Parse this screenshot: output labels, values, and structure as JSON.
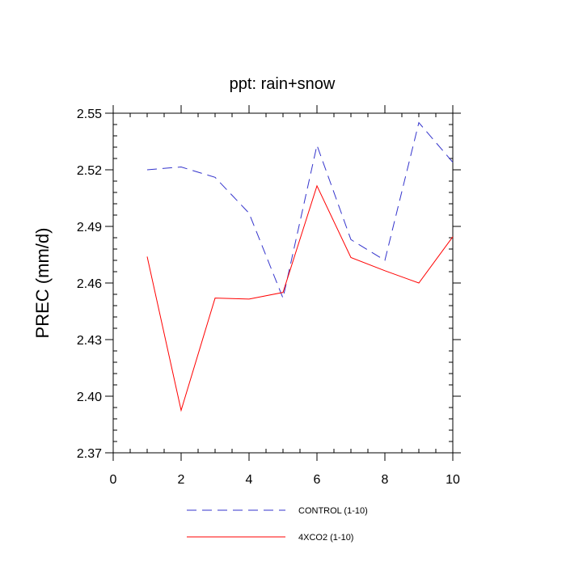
{
  "chart_data": {
    "type": "line",
    "title": "ppt: rain+snow",
    "xlabel": "",
    "ylabel": "PREC  (mm/d)",
    "xlim": [
      0,
      10
    ],
    "ylim": [
      2.37,
      2.55
    ],
    "x_ticks": [
      0,
      2,
      4,
      6,
      8,
      10
    ],
    "x_tick_labels": [
      "0",
      "2",
      "4",
      "6",
      "8",
      "10"
    ],
    "y_ticks": [
      2.37,
      2.4,
      2.43,
      2.46,
      2.49,
      2.52,
      2.55
    ],
    "y_tick_labels": [
      "2.37",
      "2.40",
      "2.43",
      "2.46",
      "2.49",
      "2.52",
      "2.55"
    ],
    "grid": false,
    "legend_position": "bottom-center",
    "x": [
      1,
      2,
      3,
      4,
      5,
      6,
      7,
      8,
      9,
      10
    ],
    "series": [
      {
        "name": "CONTROL (1-10)",
        "color": "#3333cc",
        "style": "dashed",
        "values": [
          2.52,
          2.5215,
          2.516,
          2.497,
          2.452,
          2.533,
          2.483,
          2.472,
          2.545,
          2.524
        ]
      },
      {
        "name": "4XCO2 (1-10)",
        "color": "#ff0000",
        "style": "solid",
        "values": [
          2.474,
          2.3925,
          2.452,
          2.4515,
          2.455,
          2.5115,
          2.4735,
          2.4665,
          2.46,
          2.4845
        ]
      }
    ]
  }
}
